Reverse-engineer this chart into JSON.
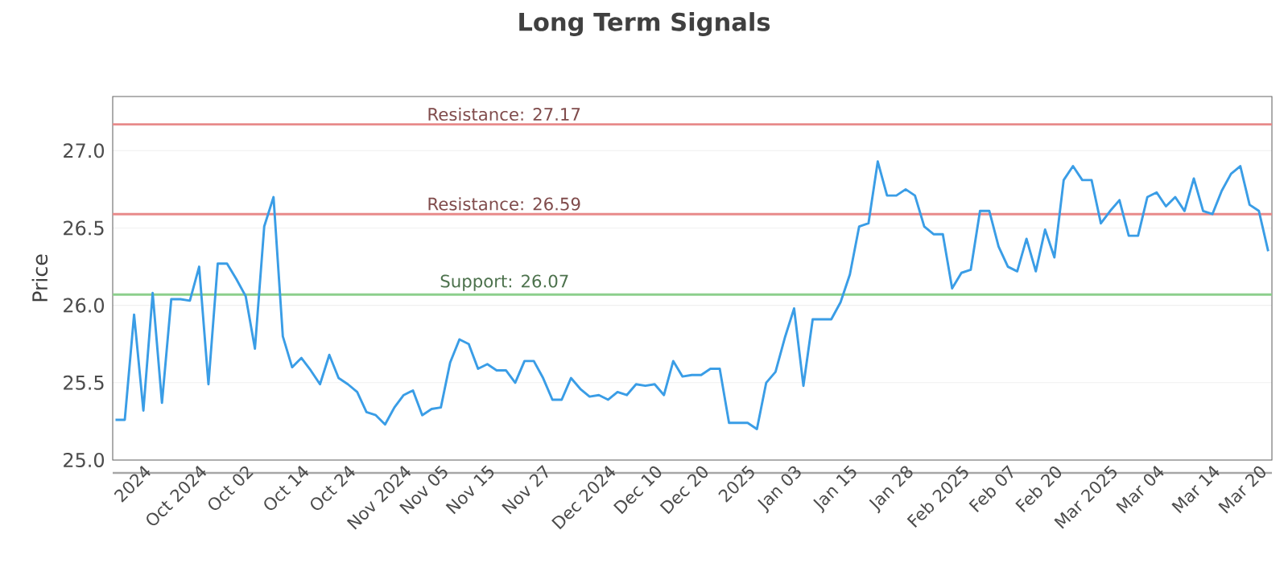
{
  "chart_data": {
    "type": "line",
    "title": "Long Term Signals",
    "ylabel": "Price",
    "categories": [
      null,
      null,
      null,
      "2024",
      null,
      null,
      null,
      null,
      null,
      "Oct 2024",
      null,
      null,
      null,
      null,
      "Oct 02",
      null,
      null,
      null,
      null,
      null,
      "Oct 14",
      null,
      null,
      null,
      null,
      "Oct 24",
      null,
      null,
      null,
      null,
      null,
      "Nov 2024",
      null,
      null,
      null,
      "Nov 05",
      null,
      null,
      null,
      null,
      "Nov 15",
      null,
      null,
      null,
      null,
      null,
      "Nov 27",
      null,
      null,
      null,
      null,
      null,
      null,
      "Dec 2024",
      null,
      null,
      null,
      null,
      "Dec 10",
      null,
      null,
      null,
      null,
      "Dec 20",
      null,
      null,
      null,
      null,
      "2025",
      null,
      null,
      null,
      null,
      "Jan 03",
      null,
      null,
      null,
      null,
      null,
      "Jan 15",
      null,
      null,
      null,
      null,
      null,
      "Jan 28",
      null,
      null,
      null,
      null,
      null,
      "Feb 2025",
      null,
      null,
      null,
      null,
      "Feb 07",
      null,
      null,
      null,
      null,
      "Feb 20",
      null,
      null,
      null,
      null,
      null,
      "Mar 2025",
      null,
      null,
      null,
      null,
      "Mar 04",
      null,
      null,
      null,
      null,
      null,
      "Mar 14",
      null,
      null,
      null,
      null,
      "Mar 20",
      null
    ],
    "series": [
      {
        "color": "#3a9de6",
        "values": [
          25.26,
          25.26,
          25.94,
          25.32,
          26.08,
          25.37,
          26.04,
          26.04,
          26.03,
          26.25,
          25.49,
          26.27,
          26.27,
          26.17,
          26.06,
          25.72,
          26.51,
          26.7,
          25.8,
          25.6,
          25.66,
          25.58,
          25.49,
          25.68,
          25.53,
          25.49,
          25.44,
          25.31,
          25.29,
          25.23,
          25.34,
          25.42,
          25.45,
          25.29,
          25.33,
          25.34,
          25.63,
          25.78,
          25.75,
          25.59,
          25.62,
          25.58,
          25.58,
          25.5,
          25.64,
          25.64,
          25.53,
          25.39,
          25.39,
          25.53,
          25.46,
          25.41,
          25.42,
          25.39,
          25.44,
          25.42,
          25.49,
          25.48,
          25.49,
          25.42,
          25.64,
          25.54,
          25.55,
          25.55,
          25.59,
          25.59,
          25.24,
          25.24,
          25.24,
          25.2,
          25.5,
          25.57,
          25.79,
          25.98,
          25.48,
          25.91,
          25.91,
          25.91,
          26.02,
          26.2,
          26.51,
          26.53,
          26.93,
          26.71,
          26.71,
          26.75,
          26.71,
          26.51,
          26.46,
          26.46,
          26.11,
          26.21,
          26.23,
          26.61,
          26.61,
          26.38,
          26.25,
          26.22,
          26.43,
          26.22,
          26.49,
          26.31,
          26.81,
          26.9,
          26.81,
          26.81,
          26.53,
          26.61,
          26.68,
          26.45,
          26.45,
          26.7,
          26.73,
          26.64,
          26.7,
          26.61,
          26.82,
          26.61,
          26.59,
          26.74,
          26.85,
          26.9,
          26.65,
          26.61,
          26.35
        ]
      }
    ],
    "ylim": [
      25.0,
      27.35
    ],
    "yticks": [
      {
        "value": 25.0,
        "label": "25.0"
      },
      {
        "value": 25.5,
        "label": "25.5"
      },
      {
        "value": 26.0,
        "label": "26.0"
      },
      {
        "value": 26.5,
        "label": "26.5"
      },
      {
        "value": 27.0,
        "label": "27.0"
      }
    ],
    "ref_lines": [
      {
        "axis": "y",
        "value": 27.17,
        "label": "Resistance: 27.17",
        "color": "#e88a8a"
      },
      {
        "axis": "y",
        "value": 26.59,
        "label": "Resistance: 26.59",
        "color": "#e88a8a"
      },
      {
        "axis": "y",
        "value": 26.07,
        "label": "Support: 26.07",
        "color": "#8ccf8c"
      }
    ],
    "grid": "y",
    "legend": false,
    "marker": "none",
    "line_style": "solid"
  }
}
